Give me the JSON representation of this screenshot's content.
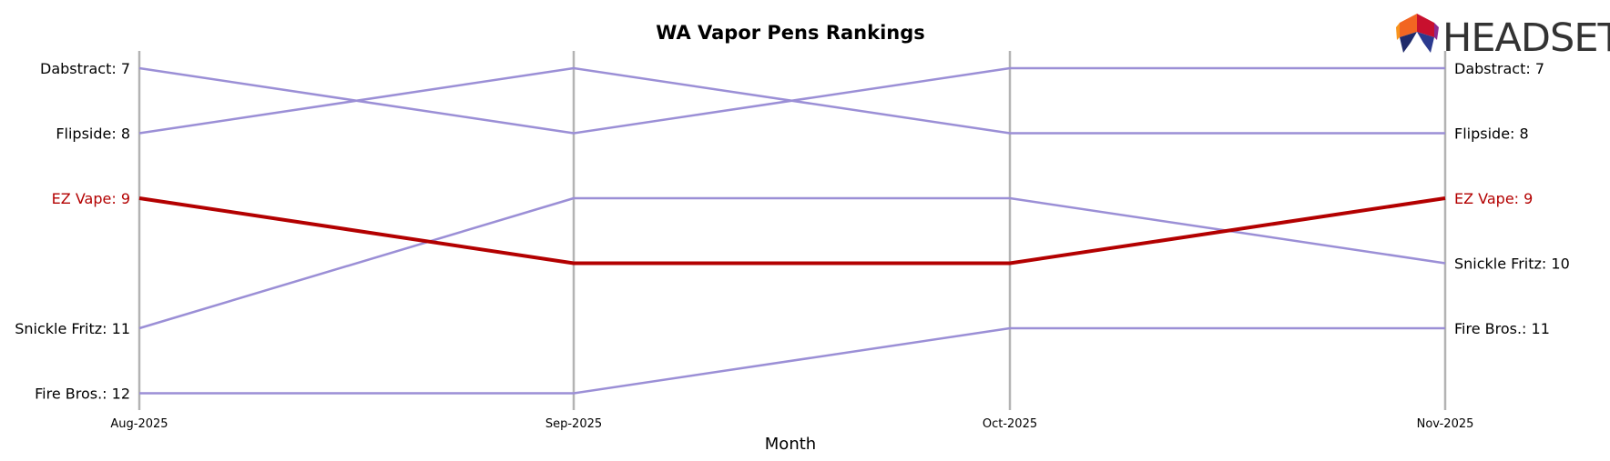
{
  "brand": {
    "wordmark": "HEADSET"
  },
  "colors": {
    "highlight": "#b30000",
    "series": "#9b8fd6",
    "month_line": "#b3b3b3",
    "text": "#000000",
    "logo_text": "#333333"
  },
  "chart_data": {
    "type": "line",
    "title": "WA Vapor Pens Rankings",
    "xlabel": "Month",
    "ylabel": "",
    "categories": [
      "Aug-2025",
      "Sep-2025",
      "Oct-2025",
      "Nov-2025"
    ],
    "y_axis": {
      "inverted": true,
      "range": [
        7,
        12
      ]
    },
    "grid": false,
    "legend": "none",
    "highlight_series": "EZ Vape",
    "series": [
      {
        "name": "Dabstract",
        "values": [
          7,
          8,
          7,
          7
        ],
        "start_label": "Dabstract: 7",
        "end_label": "Dabstract: 7"
      },
      {
        "name": "Flipside",
        "values": [
          8,
          7,
          8,
          8
        ],
        "start_label": "Flipside: 8",
        "end_label": "Flipside: 8"
      },
      {
        "name": "EZ Vape",
        "values": [
          9,
          10,
          10,
          9
        ],
        "start_label": "EZ Vape: 9",
        "end_label": "EZ Vape: 9"
      },
      {
        "name": "Snickle Fritz",
        "values": [
          11,
          9,
          9,
          10
        ],
        "start_label": "Snickle Fritz: 11",
        "end_label": "Snickle Fritz: 10"
      },
      {
        "name": "Fire Bros.",
        "values": [
          12,
          12,
          11,
          11
        ],
        "start_label": "Fire Bros.: 12",
        "end_label": "Fire Bros.: 11"
      }
    ]
  }
}
